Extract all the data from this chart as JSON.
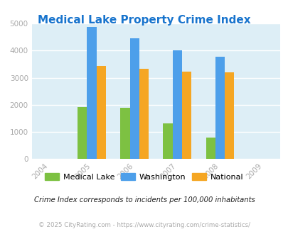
{
  "title": "Medical Lake Property Crime Index",
  "title_color": "#1874cd",
  "years": [
    2005,
    2006,
    2007,
    2008
  ],
  "x_ticks": [
    2004,
    2005,
    2006,
    2007,
    2008,
    2009
  ],
  "medical_lake": [
    1920,
    1890,
    1310,
    790
  ],
  "washington": [
    4880,
    4450,
    4020,
    3760
  ],
  "national": [
    3430,
    3330,
    3230,
    3200
  ],
  "bar_colors": {
    "medical_lake": "#7dc142",
    "washington": "#4d9fea",
    "national": "#f5a623"
  },
  "ylim": [
    0,
    5000
  ],
  "yticks": [
    0,
    1000,
    2000,
    3000,
    4000,
    5000
  ],
  "background_color": "#ddeef6",
  "legend_labels": [
    "Medical Lake",
    "Washington",
    "National"
  ],
  "footnote1": "Crime Index corresponds to incidents per 100,000 inhabitants",
  "footnote2": "© 2025 CityRating.com - https://www.cityrating.com/crime-statistics/",
  "bar_width": 0.22,
  "fig_bg": "#ffffff"
}
